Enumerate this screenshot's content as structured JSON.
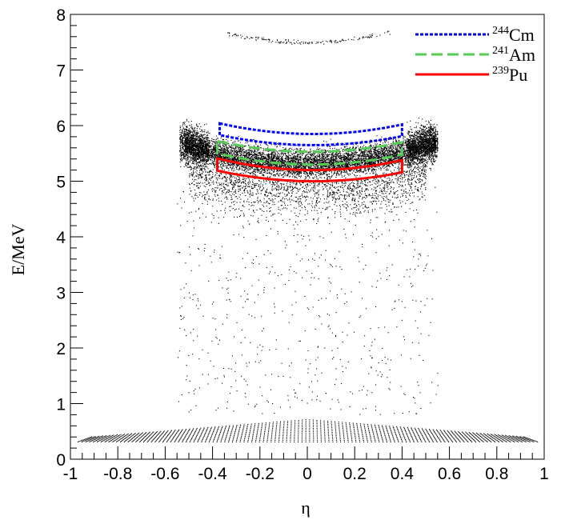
{
  "chart_data": {
    "type": "scatter",
    "title": "",
    "xlabel": "η",
    "ylabel": "E/MeV",
    "xlim": [
      -1,
      1
    ],
    "ylim": [
      0,
      8
    ],
    "x_ticks": [
      -1,
      -0.8,
      -0.6,
      -0.4,
      -0.2,
      0,
      0.2,
      0.4,
      0.6,
      0.8,
      1
    ],
    "x_tick_labels": [
      "-1",
      "-0.8",
      "-0.6",
      "-0.4",
      "-0.2",
      "0",
      "0.2",
      "0.4",
      "0.6",
      "0.8",
      "1"
    ],
    "y_ticks": [
      0,
      1,
      2,
      3,
      4,
      5,
      6,
      7,
      8
    ],
    "y_tick_labels": [
      "0",
      "1",
      "2",
      "3",
      "4",
      "5",
      "6",
      "7",
      "8"
    ],
    "grid": false,
    "legend_position": "top-right",
    "scatter_regions": [
      {
        "name": "alpha band",
        "eta_range": [
          -0.52,
          0.55
        ],
        "energy_center": 5.4,
        "energy_spread": 0.35
      },
      {
        "name": "low-energy fan",
        "eta_range": [
          -0.98,
          0.98
        ],
        "energy_range": [
          0.3,
          0.75
        ]
      },
      {
        "name": "upper arc",
        "eta_range": [
          -0.35,
          0.35
        ],
        "energy_range": [
          7.45,
          7.9
        ]
      },
      {
        "name": "sparse background",
        "eta_range": [
          -0.55,
          0.55
        ],
        "energy_range": [
          0.8,
          5.0
        ]
      }
    ],
    "series": [
      {
        "name": "244Cm",
        "nuclide_mass": "244",
        "nuclide_symbol": "Cm",
        "color": "#0000ff",
        "style": "dotted",
        "eta_range": [
          -0.37,
          0.4
        ],
        "upper_edge": [
          [
            -0.37,
            6.04
          ],
          [
            0.0,
            5.85
          ],
          [
            0.4,
            6.02
          ]
        ],
        "lower_edge": [
          [
            -0.37,
            5.83
          ],
          [
            0.0,
            5.65
          ],
          [
            0.4,
            5.81
          ]
        ]
      },
      {
        "name": "241Am",
        "nuclide_mass": "241",
        "nuclide_symbol": "Am",
        "color": "#55cc55",
        "style": "dashed",
        "eta_range": [
          -0.38,
          0.4
        ],
        "upper_edge": [
          [
            -0.38,
            5.72
          ],
          [
            0.0,
            5.53
          ],
          [
            0.4,
            5.7
          ]
        ],
        "lower_edge": [
          [
            -0.38,
            5.5
          ],
          [
            0.0,
            5.3
          ],
          [
            0.4,
            5.48
          ]
        ]
      },
      {
        "name": "239Pu",
        "nuclide_mass": "239",
        "nuclide_symbol": "Pu",
        "color": "#ff0000",
        "style": "solid",
        "eta_range": [
          -0.38,
          0.4
        ],
        "upper_edge": [
          [
            -0.38,
            5.41
          ],
          [
            0.0,
            5.2
          ],
          [
            0.4,
            5.38
          ]
        ],
        "lower_edge": [
          [
            -0.38,
            5.19
          ],
          [
            0.0,
            5.0
          ],
          [
            0.4,
            5.16
          ]
        ]
      }
    ]
  }
}
